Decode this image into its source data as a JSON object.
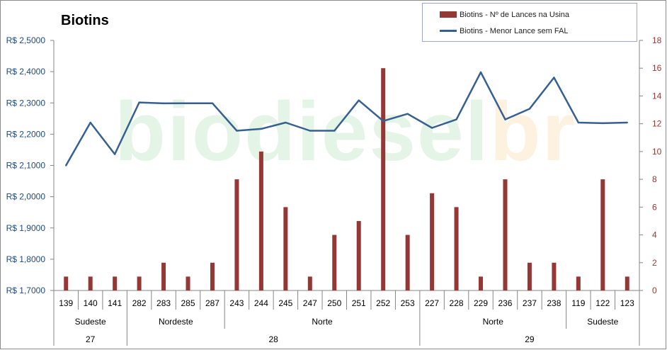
{
  "chart_data": {
    "type": "bar+line",
    "title": "Biotins",
    "categories": [
      "139",
      "140",
      "141",
      "282",
      "283",
      "285",
      "287",
      "243",
      "244",
      "245",
      "247",
      "250",
      "251",
      "252",
      "253",
      "227",
      "228",
      "229",
      "236",
      "237",
      "238",
      "119",
      "122",
      "123"
    ],
    "group_level_1": [
      {
        "label": "Sudeste",
        "count": 3
      },
      {
        "label": "Nordeste",
        "count": 4
      },
      {
        "label": "Norte",
        "count": 8
      },
      {
        "label": "Norte",
        "count": 6
      },
      {
        "label": "Sudeste",
        "count": 3
      }
    ],
    "group_level_2": [
      {
        "label": "27",
        "count": 3
      },
      {
        "label": "28",
        "count": 12
      },
      {
        "label": "29",
        "count": 9
      }
    ],
    "series": [
      {
        "name": "Biotins - Nº de Lances na Usina",
        "type": "bar",
        "axis": "right",
        "color": "#953735",
        "values": [
          1,
          1,
          1,
          1,
          2,
          1,
          2,
          8,
          10,
          6,
          1,
          4,
          5,
          16,
          4,
          7,
          6,
          1,
          8,
          2,
          2,
          1,
          8,
          1
        ]
      },
      {
        "name": "Biotins - Menor Lance sem FAL",
        "type": "line",
        "axis": "left",
        "color": "#376092",
        "values": [
          2.1,
          2.237,
          2.136,
          2.3015,
          2.2985,
          2.299,
          2.299,
          2.211,
          2.217,
          2.237,
          2.211,
          2.211,
          2.308,
          2.242,
          2.265,
          2.22,
          2.247,
          2.398,
          2.247,
          2.281,
          2.381,
          2.237,
          2.235,
          2.237
        ]
      }
    ],
    "y_left": {
      "min": 1.7,
      "max": 2.5,
      "step": 0.1,
      "ticks": [
        "R$ 1,7000",
        "R$ 1,8000",
        "R$ 1,9000",
        "R$ 2,0000",
        "R$ 2,1000",
        "R$ 2,2000",
        "R$ 2,3000",
        "R$ 2,4000",
        "R$ 2,5000"
      ]
    },
    "y_right": {
      "min": 0,
      "max": 18,
      "step": 2,
      "ticks": [
        "0",
        "2",
        "4",
        "6",
        "8",
        "10",
        "12",
        "14",
        "16",
        "18"
      ]
    },
    "grid": false,
    "legend_position": "top-right"
  },
  "watermark": {
    "part_a": "biodiesel",
    "part_b": "br"
  },
  "colors": {
    "bar": "#953735",
    "line": "#376092",
    "left_axis_text": "#1f497d",
    "right_axis_text": "#953735"
  }
}
